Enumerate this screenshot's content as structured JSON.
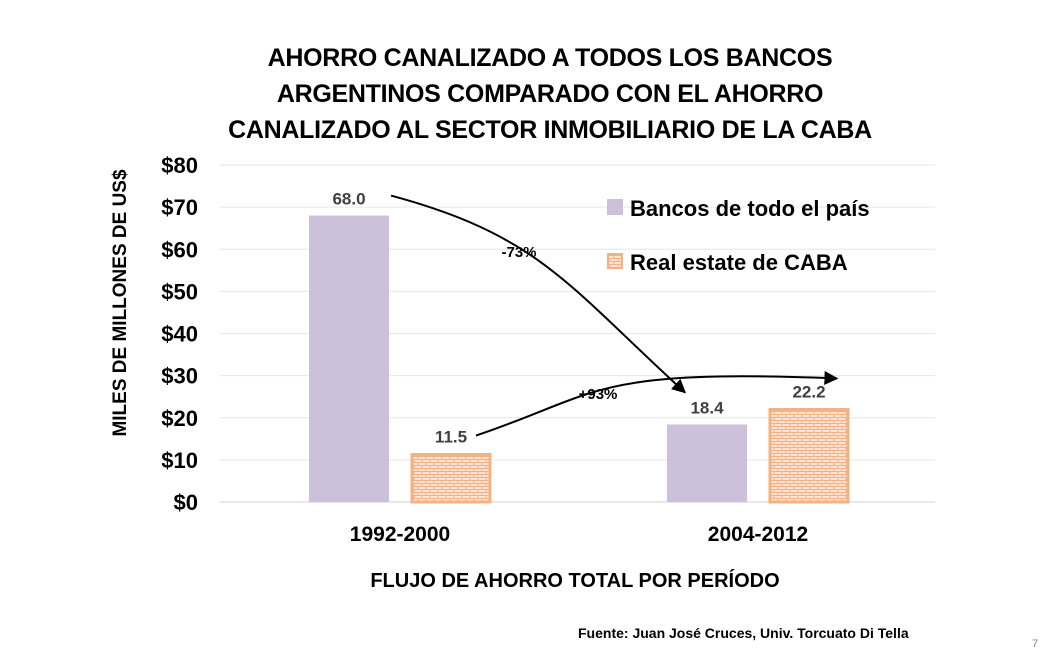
{
  "chart_data": {
    "type": "bar",
    "title": [
      "AHORRO CANALIZADO A TODOS LOS BANCOS",
      "ARGENTINOS COMPARADO CON EL AHORRO",
      "CANALIZADO AL SECTOR INMOBILIARIO DE LA CABA"
    ],
    "xlabel": "FLUJO DE AHORRO TOTAL POR PERÍODO",
    "ylabel": "MILES DE MILLONES DE US$",
    "categories": [
      "1992-2000",
      "2004-2012"
    ],
    "ylim": [
      0,
      80
    ],
    "yticks": [
      "$0",
      "$10",
      "$20",
      "$30",
      "$40",
      "$50",
      "$60",
      "$70",
      "$80"
    ],
    "grid": true,
    "legend_position": "top-right",
    "series": [
      {
        "name": "Bancos de todo el país",
        "values": [
          68.0,
          18.4
        ],
        "labels": [
          "68.0",
          "18.4"
        ],
        "color": "#ccc0da",
        "pattern": "solid"
      },
      {
        "name": "Real estate de CABA",
        "values": [
          11.5,
          22.2
        ],
        "labels": [
          "11.5",
          "22.2"
        ],
        "color": "#f4b183",
        "pattern": "brick"
      }
    ],
    "annotations": [
      {
        "text": "-73%",
        "from": "Bancos de todo el país 1992-2000",
        "to": "Bancos de todo el país 2004-2012"
      },
      {
        "text": "+93%",
        "from": "Real estate de CABA 1992-2000",
        "to": "Real estate de CABA 2004-2012"
      }
    ]
  },
  "source": "Fuente: Juan José Cruces, Univ. Torcuato Di Tella",
  "page_number": "7"
}
